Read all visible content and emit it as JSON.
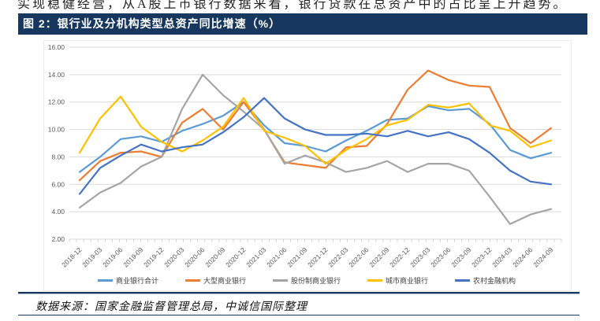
{
  "page": {
    "top_text": "实现稳健经营，从A股上市银行数据来看，银行贷款在总资产中的占比呈上升趋势。",
    "figure_title": "图 2：银行业及分机构类型总资产同比增速（%）",
    "source_note": "数据来源：国家金融监督管理总局，中诚信国际整理"
  },
  "colors": {
    "header_bg": "#17375E",
    "grid": "#D9D9D9",
    "tick": "#BFBFBF",
    "axis_text": "#595959"
  },
  "chart_data": {
    "type": "line",
    "title": "银行业及分机构类型总资产同比增速（%）",
    "xlabel": "",
    "ylabel": "",
    "ylim": [
      2,
      16
    ],
    "ytick_step": 2,
    "ytick_labels": [
      "16.00",
      "14.00",
      "12.00",
      "10.00",
      "8.00",
      "6.00",
      "4.00",
      "2.00"
    ],
    "grid": "horizontal",
    "legend_position": "bottom",
    "x": [
      "2018-12",
      "2019-03",
      "2019-06",
      "2019-09",
      "2019-12",
      "2020-03",
      "2020-06",
      "2020-09",
      "2020-12",
      "2021-03",
      "2021-06",
      "2021-09",
      "2021-12",
      "2022-03",
      "2022-06",
      "2022-09",
      "2022-12",
      "2023-03",
      "2023-06",
      "2023-09",
      "2023-12",
      "2024-03",
      "2024-06",
      "2024-09"
    ],
    "series": [
      {
        "name": "商业银行合计",
        "color": "#5B9BD5",
        "values": [
          6.9,
          8.0,
          9.3,
          9.5,
          9.1,
          9.9,
          10.4,
          11.0,
          12.0,
          10.3,
          9.0,
          8.8,
          8.4,
          9.2,
          9.9,
          10.7,
          10.8,
          11.7,
          11.4,
          11.5,
          10.4,
          8.5,
          7.9,
          8.3
        ]
      },
      {
        "name": "大型商业银行",
        "color": "#ED7D31",
        "values": [
          6.3,
          7.7,
          8.3,
          8.4,
          8.0,
          10.5,
          11.5,
          10.0,
          12.0,
          10.0,
          7.6,
          7.4,
          7.2,
          8.7,
          8.8,
          10.4,
          12.9,
          14.3,
          13.6,
          13.2,
          13.1,
          10.1,
          9.0,
          10.1
        ]
      },
      {
        "name": "股份制商业银行",
        "color": "#A5A5A5",
        "values": [
          4.3,
          5.4,
          6.1,
          7.3,
          8.0,
          11.5,
          14.0,
          12.5,
          11.3,
          10.0,
          7.5,
          8.1,
          7.6,
          6.9,
          7.2,
          7.7,
          6.9,
          7.5,
          7.5,
          7.0,
          5.1,
          3.1,
          3.8,
          4.2
        ]
      },
      {
        "name": "城市商业银行",
        "color": "#FFC000",
        "values": [
          8.3,
          10.8,
          12.4,
          10.2,
          9.1,
          8.4,
          9.2,
          10.2,
          12.3,
          9.9,
          9.4,
          8.8,
          7.5,
          8.5,
          9.3,
          10.3,
          10.7,
          11.8,
          11.6,
          11.9,
          10.3,
          9.9,
          8.7,
          9.2
        ]
      },
      {
        "name": "农村金融机构",
        "color": "#4472C4",
        "values": [
          5.3,
          7.2,
          8.1,
          8.9,
          8.4,
          8.7,
          8.9,
          9.8,
          10.9,
          12.3,
          10.8,
          10.0,
          9.6,
          9.6,
          9.7,
          9.5,
          9.9,
          9.5,
          9.8,
          9.3,
          8.3,
          7.0,
          6.2,
          6.0
        ]
      }
    ]
  }
}
